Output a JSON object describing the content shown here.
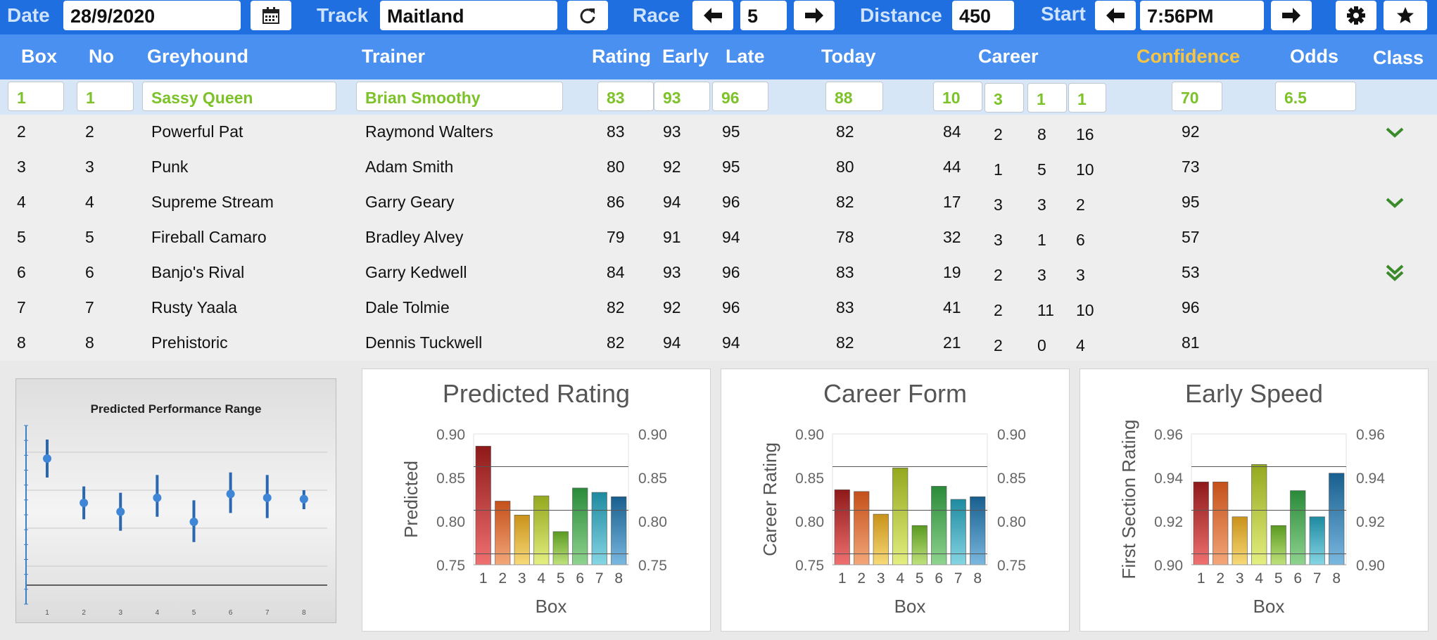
{
  "toolbar": {
    "date_label": "Date",
    "date_value": "28/9/2020",
    "track_label": "Track",
    "track_value": "Maitland",
    "race_label": "Race",
    "race_value": "5",
    "distance_label": "Distance",
    "distance_value": "450",
    "start_label": "Start",
    "start_value": "7:56PM",
    "icons": [
      "calendar-icon",
      "refresh-icon",
      "arrow-left-icon",
      "arrow-right-icon",
      "gear-icon",
      "star-icon"
    ]
  },
  "table": {
    "headers": {
      "box": "Box",
      "no": "No",
      "greyhound": "Greyhound",
      "trainer": "Trainer",
      "rating": "Rating",
      "early": "Early",
      "late": "Late",
      "today": "Today",
      "career": "Career",
      "confidence": "Confidence",
      "odds": "Odds",
      "class": "Class"
    },
    "selected": {
      "box": "1",
      "no": "1",
      "greyhound": "Sassy Queen",
      "trainer": "Brian Smoothy",
      "rating": "83",
      "early": "93",
      "late": "96",
      "today": "88",
      "career_rating": "10",
      "career_a": "3",
      "career_b": "1",
      "career_c": "1",
      "confidence": "70",
      "odds": "6.5"
    },
    "rows": [
      {
        "box": "2",
        "no": "2",
        "greyhound": "Powerful Pat",
        "trainer": "Raymond Walters",
        "rating": "83",
        "early": "93",
        "late": "95",
        "today": "82",
        "career_rating": "84",
        "career_a": "2",
        "career_b": "8",
        "career_c": "16",
        "confidence": "92",
        "class_icon": "chevron-down-icon"
      },
      {
        "box": "3",
        "no": "3",
        "greyhound": "Punk",
        "trainer": "Adam Smith",
        "rating": "80",
        "early": "92",
        "late": "95",
        "today": "80",
        "career_rating": "44",
        "career_a": "1",
        "career_b": "5",
        "career_c": "10",
        "confidence": "73",
        "class_icon": ""
      },
      {
        "box": "4",
        "no": "4",
        "greyhound": "Supreme Stream",
        "trainer": "Garry Geary",
        "rating": "86",
        "early": "94",
        "late": "96",
        "today": "82",
        "career_rating": "17",
        "career_a": "3",
        "career_b": "3",
        "career_c": "2",
        "confidence": "95",
        "class_icon": "chevron-down-icon"
      },
      {
        "box": "5",
        "no": "5",
        "greyhound": "Fireball Camaro",
        "trainer": "Bradley Alvey",
        "rating": "79",
        "early": "91",
        "late": "94",
        "today": "78",
        "career_rating": "32",
        "career_a": "3",
        "career_b": "1",
        "career_c": "6",
        "confidence": "57",
        "class_icon": ""
      },
      {
        "box": "6",
        "no": "6",
        "greyhound": "Banjo's Rival",
        "trainer": "Garry Kedwell",
        "rating": "84",
        "early": "93",
        "late": "96",
        "today": "83",
        "career_rating": "19",
        "career_a": "2",
        "career_b": "3",
        "career_c": "3",
        "confidence": "53",
        "class_icon": "double-chevron-down-icon"
      },
      {
        "box": "7",
        "no": "7",
        "greyhound": "Rusty Yaala",
        "trainer": "Dale Tolmie",
        "rating": "82",
        "early": "92",
        "late": "96",
        "today": "83",
        "career_rating": "41",
        "career_a": "2",
        "career_b": "11",
        "career_c": "10",
        "confidence": "96",
        "class_icon": ""
      },
      {
        "box": "8",
        "no": "8",
        "greyhound": "Prehistoric",
        "trainer": "Dennis Tuckwell",
        "rating": "82",
        "early": "94",
        "late": "94",
        "today": "82",
        "career_rating": "21",
        "career_a": "2",
        "career_b": "0",
        "career_c": "4",
        "confidence": "81",
        "class_icon": ""
      }
    ]
  },
  "colors": {
    "toolbar_bg": "#1f6fe0",
    "header_bg": "#4a90f0",
    "selected_bg": "#d6e6f7",
    "selected_text": "#7cc228",
    "confidence_header": "#f6c544",
    "class_icon": "#3a8a2a"
  },
  "chart_data": [
    {
      "type": "scatter",
      "title": "Predicted Performance Range",
      "categories": [
        "1",
        "2",
        "3",
        "4",
        "5",
        "6",
        "7",
        "8"
      ],
      "values": [
        0.865,
        0.83,
        0.823,
        0.834,
        0.815,
        0.837,
        0.834,
        0.833
      ],
      "low": [
        0.85,
        0.817,
        0.808,
        0.819,
        0.799,
        0.822,
        0.818,
        0.825
      ],
      "high": [
        0.88,
        0.843,
        0.838,
        0.852,
        0.832,
        0.854,
        0.852,
        0.84
      ],
      "ylim": [
        0.75,
        0.9
      ],
      "grid": true
    },
    {
      "type": "bar",
      "title": "Predicted Rating",
      "xlabel": "Box",
      "ylabel": "Predicted",
      "categories": [
        "1",
        "2",
        "3",
        "4",
        "5",
        "6",
        "7",
        "8"
      ],
      "values": [
        0.886,
        0.823,
        0.807,
        0.829,
        0.788,
        0.838,
        0.833,
        0.828
      ],
      "ylim": [
        0.75,
        0.9
      ],
      "yticks": [
        "0.75",
        "0.80",
        "0.85",
        "0.90"
      ],
      "grid": true
    },
    {
      "type": "bar",
      "title": "Career Form",
      "xlabel": "Box",
      "ylabel": "Career Rating",
      "categories": [
        "1",
        "2",
        "3",
        "4",
        "5",
        "6",
        "7",
        "8"
      ],
      "values": [
        0.836,
        0.834,
        0.808,
        0.861,
        0.795,
        0.84,
        0.825,
        0.828
      ],
      "ylim": [
        0.75,
        0.9
      ],
      "yticks": [
        "0.75",
        "0.80",
        "0.85",
        "0.90"
      ],
      "grid": true
    },
    {
      "type": "bar",
      "title": "Early Speed",
      "xlabel": "Box",
      "ylabel": "First Section Rating",
      "categories": [
        "1",
        "2",
        "3",
        "4",
        "5",
        "6",
        "7",
        "8"
      ],
      "values": [
        0.938,
        0.938,
        0.922,
        0.946,
        0.918,
        0.934,
        0.922,
        0.942
      ],
      "ylim": [
        0.9,
        0.96
      ],
      "yticks": [
        "0.90",
        "0.92",
        "0.94",
        "0.96"
      ],
      "grid": true
    }
  ]
}
